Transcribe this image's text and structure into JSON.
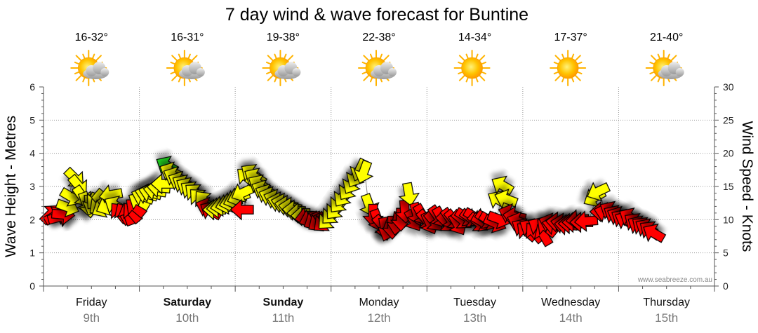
{
  "chart_data": {
    "type": "line",
    "title": "7 day wind & wave forecast for Buntine",
    "ylabel_left": "Wave Height - Metres",
    "ylabel_right": "Wind Speed - Knots",
    "ylim_left": [
      0,
      6
    ],
    "ylim_right": [
      0,
      30
    ],
    "yticks_left": [
      "0",
      "1",
      "2",
      "3",
      "4",
      "5",
      "6"
    ],
    "yticks_right": [
      "0",
      "5",
      "10",
      "15",
      "20",
      "25",
      "30"
    ],
    "credit": "www.seabreeze.com.au",
    "grid": true,
    "days": [
      {
        "name": "Friday",
        "date": "9th",
        "temp": "16-32°",
        "icon": "sun-cloud-icon",
        "bold": false
      },
      {
        "name": "Saturday",
        "date": "10th",
        "temp": "16-31°",
        "icon": "sun-cloud-icon",
        "bold": true
      },
      {
        "name": "Sunday",
        "date": "11th",
        "temp": "19-38°",
        "icon": "sun-cloud-icon",
        "bold": true
      },
      {
        "name": "Monday",
        "date": "12th",
        "temp": "22-38°",
        "icon": "sun-cloud-icon",
        "bold": false
      },
      {
        "name": "Tuesday",
        "date": "13th",
        "temp": "14-34°",
        "icon": "sun-icon",
        "bold": false
      },
      {
        "name": "Wednesday",
        "date": "14th",
        "temp": "17-37°",
        "icon": "sun-icon",
        "bold": false
      },
      {
        "name": "Thursday",
        "date": "15th",
        "temp": "21-40°",
        "icon": "sun-cloud-icon",
        "bold": false
      }
    ],
    "wind_colors": {
      "red": "#ff0000",
      "yellow": "#ffff00",
      "green": "#22dd22"
    },
    "wind_series": [
      {
        "day": 0.0,
        "knots": 10.6,
        "dir": 45,
        "color": "red"
      },
      {
        "day": 0.04,
        "knots": 10.4,
        "dir": 60,
        "color": "red"
      },
      {
        "day": 0.08,
        "knots": 10.3,
        "dir": 75,
        "color": "red"
      },
      {
        "day": 0.12,
        "knots": 10.8,
        "dir": 95,
        "color": "red"
      },
      {
        "day": 0.17,
        "knots": 12.0,
        "dir": 110,
        "color": "yellow"
      },
      {
        "day": 0.21,
        "knots": 13.6,
        "dir": 120,
        "color": "yellow"
      },
      {
        "day": 0.25,
        "knots": 16.5,
        "dir": 135,
        "color": "yellow"
      },
      {
        "day": 0.29,
        "knots": 15.4,
        "dir": 140,
        "color": "yellow"
      },
      {
        "day": 0.33,
        "knots": 13.8,
        "dir": 145,
        "color": "yellow"
      },
      {
        "day": 0.38,
        "knots": 12.8,
        "dir": 160,
        "color": "yellow"
      },
      {
        "day": 0.42,
        "knots": 12.4,
        "dir": 175,
        "color": "yellow"
      },
      {
        "day": 0.46,
        "knots": 12.7,
        "dir": 200,
        "color": "yellow"
      },
      {
        "day": 0.5,
        "knots": 13.3,
        "dir": 220,
        "color": "yellow"
      },
      {
        "day": 0.54,
        "knots": 12.4,
        "dir": 230,
        "color": "yellow"
      },
      {
        "day": 0.58,
        "knots": 11.9,
        "dir": 240,
        "color": "yellow"
      },
      {
        "day": 0.63,
        "knots": 12.2,
        "dir": 245,
        "color": "yellow"
      },
      {
        "day": 0.67,
        "knots": 13.8,
        "dir": 260,
        "color": "yellow"
      },
      {
        "day": 0.71,
        "knots": 12.0,
        "dir": 300,
        "color": "yellow"
      },
      {
        "day": 0.75,
        "knots": 10.8,
        "dir": 320,
        "color": "red"
      },
      {
        "day": 0.79,
        "knots": 10.6,
        "dir": 330,
        "color": "red"
      },
      {
        "day": 0.83,
        "knots": 10.5,
        "dir": 340,
        "color": "red"
      },
      {
        "day": 0.88,
        "knots": 10.8,
        "dir": 320,
        "color": "red"
      },
      {
        "day": 0.92,
        "knots": 11.6,
        "dir": 310,
        "color": "red"
      },
      {
        "day": 0.96,
        "knots": 12.6,
        "dir": 300,
        "color": "yellow"
      },
      {
        "day": 1.0,
        "knots": 13.4,
        "dir": 290,
        "color": "yellow"
      },
      {
        "day": 1.04,
        "knots": 13.8,
        "dir": 285,
        "color": "yellow"
      },
      {
        "day": 1.08,
        "knots": 14.0,
        "dir": 285,
        "color": "yellow"
      },
      {
        "day": 1.13,
        "knots": 14.3,
        "dir": 280,
        "color": "yellow"
      },
      {
        "day": 1.17,
        "knots": 14.8,
        "dir": 275,
        "color": "yellow"
      },
      {
        "day": 1.21,
        "knots": 15.4,
        "dir": 270,
        "color": "yellow"
      },
      {
        "day": 1.25,
        "knots": 18.0,
        "dir": 300,
        "color": "green"
      },
      {
        "day": 1.29,
        "knots": 17.1,
        "dir": 295,
        "color": "yellow"
      },
      {
        "day": 1.33,
        "knots": 16.4,
        "dir": 295,
        "color": "yellow"
      },
      {
        "day": 1.38,
        "knots": 15.7,
        "dir": 295,
        "color": "yellow"
      },
      {
        "day": 1.42,
        "knots": 15.2,
        "dir": 300,
        "color": "yellow"
      },
      {
        "day": 1.46,
        "knots": 14.8,
        "dir": 300,
        "color": "yellow"
      },
      {
        "day": 1.5,
        "knots": 14.2,
        "dir": 305,
        "color": "yellow"
      },
      {
        "day": 1.54,
        "knots": 13.8,
        "dir": 310,
        "color": "yellow"
      },
      {
        "day": 1.58,
        "knots": 13.0,
        "dir": 315,
        "color": "yellow"
      },
      {
        "day": 1.63,
        "knots": 12.6,
        "dir": 320,
        "color": "yellow"
      },
      {
        "day": 1.67,
        "knots": 11.8,
        "dir": 290,
        "color": "red"
      },
      {
        "day": 1.71,
        "knots": 11.2,
        "dir": 300,
        "color": "red"
      },
      {
        "day": 1.75,
        "knots": 11.5,
        "dir": 270,
        "color": "yellow"
      },
      {
        "day": 1.79,
        "knots": 11.8,
        "dir": 265,
        "color": "yellow"
      },
      {
        "day": 1.83,
        "knots": 12.1,
        "dir": 260,
        "color": "yellow"
      },
      {
        "day": 1.88,
        "knots": 12.4,
        "dir": 255,
        "color": "yellow"
      },
      {
        "day": 1.92,
        "knots": 12.7,
        "dir": 255,
        "color": "yellow"
      },
      {
        "day": 1.96,
        "knots": 13.1,
        "dir": 250,
        "color": "yellow"
      },
      {
        "day": 2.0,
        "knots": 13.5,
        "dir": 250,
        "color": "yellow"
      },
      {
        "day": 2.04,
        "knots": 14.2,
        "dir": 245,
        "color": "yellow"
      },
      {
        "day": 2.08,
        "knots": 16.2,
        "dir": 310,
        "color": "yellow"
      },
      {
        "day": 2.13,
        "knots": 16.8,
        "dir": 305,
        "color": "yellow"
      },
      {
        "day": 2.17,
        "knots": 16.2,
        "dir": 300,
        "color": "yellow"
      },
      {
        "day": 2.21,
        "knots": 15.2,
        "dir": 300,
        "color": "yellow"
      },
      {
        "day": 2.25,
        "knots": 14.4,
        "dir": 295,
        "color": "yellow"
      },
      {
        "day": 2.29,
        "knots": 13.8,
        "dir": 295,
        "color": "yellow"
      },
      {
        "day": 2.33,
        "knots": 13.4,
        "dir": 290,
        "color": "yellow"
      },
      {
        "day": 2.38,
        "knots": 13.0,
        "dir": 290,
        "color": "yellow"
      },
      {
        "day": 2.42,
        "knots": 12.6,
        "dir": 285,
        "color": "yellow"
      },
      {
        "day": 2.46,
        "knots": 12.4,
        "dir": 285,
        "color": "yellow"
      },
      {
        "day": 2.5,
        "knots": 12.1,
        "dir": 280,
        "color": "yellow"
      },
      {
        "day": 2.54,
        "knots": 11.8,
        "dir": 280,
        "color": "yellow"
      },
      {
        "day": 2.58,
        "knots": 11.4,
        "dir": 275,
        "color": "yellow"
      },
      {
        "day": 2.63,
        "knots": 11.0,
        "dir": 270,
        "color": "yellow"
      },
      {
        "day": 2.67,
        "knots": 10.6,
        "dir": 270,
        "color": "yellow"
      },
      {
        "day": 2.04,
        "knots": 11.5,
        "dir": 270,
        "color": "red"
      },
      {
        "day": 2.71,
        "knots": 10.4,
        "dir": 260,
        "color": "red"
      },
      {
        "day": 2.75,
        "knots": 10.2,
        "dir": 250,
        "color": "red"
      },
      {
        "day": 2.79,
        "knots": 10.0,
        "dir": 240,
        "color": "red"
      },
      {
        "day": 2.83,
        "knots": 9.8,
        "dir": 235,
        "color": "red"
      },
      {
        "day": 2.88,
        "knots": 9.8,
        "dir": 230,
        "color": "red"
      },
      {
        "day": 2.92,
        "knots": 10.2,
        "dir": 225,
        "color": "yellow"
      },
      {
        "day": 2.96,
        "knots": 11.0,
        "dir": 225,
        "color": "yellow"
      },
      {
        "day": 3.0,
        "knots": 11.8,
        "dir": 220,
        "color": "yellow"
      },
      {
        "day": 3.04,
        "knots": 12.8,
        "dir": 220,
        "color": "yellow"
      },
      {
        "day": 3.08,
        "knots": 13.8,
        "dir": 215,
        "color": "yellow"
      },
      {
        "day": 3.13,
        "knots": 14.8,
        "dir": 215,
        "color": "yellow"
      },
      {
        "day": 3.17,
        "knots": 15.8,
        "dir": 210,
        "color": "yellow"
      },
      {
        "day": 3.21,
        "knots": 16.8,
        "dir": 210,
        "color": "yellow"
      },
      {
        "day": 3.25,
        "knots": 17.8,
        "dir": 205,
        "color": "yellow"
      },
      {
        "day": 3.29,
        "knots": 17.5,
        "dir": 200,
        "color": "yellow"
      },
      {
        "day": 3.33,
        "knots": 12.5,
        "dir": 160,
        "color": "yellow"
      },
      {
        "day": 3.38,
        "knots": 11.0,
        "dir": 180,
        "color": "red"
      },
      {
        "day": 3.42,
        "knots": 10.2,
        "dir": 160,
        "color": "red"
      },
      {
        "day": 3.46,
        "knots": 9.4,
        "dir": 140,
        "color": "red"
      },
      {
        "day": 3.5,
        "knots": 9.0,
        "dir": 170,
        "color": "red"
      },
      {
        "day": 3.54,
        "knots": 8.8,
        "dir": 200,
        "color": "red"
      },
      {
        "day": 3.58,
        "knots": 9.2,
        "dir": 180,
        "color": "red"
      },
      {
        "day": 3.63,
        "knots": 9.8,
        "dir": 190,
        "color": "red"
      },
      {
        "day": 3.67,
        "knots": 10.4,
        "dir": 180,
        "color": "red"
      },
      {
        "day": 3.71,
        "knots": 11.6,
        "dir": 175,
        "color": "red"
      },
      {
        "day": 3.75,
        "knots": 14.2,
        "dir": 170,
        "color": "yellow"
      },
      {
        "day": 3.79,
        "knots": 10.2,
        "dir": 150,
        "color": "red"
      },
      {
        "day": 3.83,
        "knots": 11.2,
        "dir": 165,
        "color": "red"
      },
      {
        "day": 3.88,
        "knots": 11.0,
        "dir": 150,
        "color": "red"
      },
      {
        "day": 3.92,
        "knots": 10.2,
        "dir": 140,
        "color": "red"
      },
      {
        "day": 3.96,
        "knots": 9.8,
        "dir": 155,
        "color": "red"
      },
      {
        "day": 4.0,
        "knots": 10.0,
        "dir": 140,
        "color": "red"
      },
      {
        "day": 4.04,
        "knots": 10.8,
        "dir": 145,
        "color": "red"
      },
      {
        "day": 4.08,
        "knots": 10.6,
        "dir": 150,
        "color": "red"
      },
      {
        "day": 4.13,
        "knots": 9.8,
        "dir": 135,
        "color": "red"
      },
      {
        "day": 4.17,
        "knots": 10.4,
        "dir": 145,
        "color": "red"
      },
      {
        "day": 4.21,
        "knots": 10.2,
        "dir": 140,
        "color": "red"
      },
      {
        "day": 4.25,
        "knots": 9.6,
        "dir": 150,
        "color": "red"
      },
      {
        "day": 4.29,
        "knots": 10.2,
        "dir": 130,
        "color": "red"
      },
      {
        "day": 4.33,
        "knots": 10.6,
        "dir": 120,
        "color": "red"
      },
      {
        "day": 4.38,
        "knots": 10.4,
        "dir": 125,
        "color": "red"
      },
      {
        "day": 4.42,
        "knots": 10.6,
        "dir": 120,
        "color": "red"
      },
      {
        "day": 4.46,
        "knots": 9.8,
        "dir": 130,
        "color": "red"
      },
      {
        "day": 4.5,
        "knots": 9.8,
        "dir": 120,
        "color": "red"
      },
      {
        "day": 4.54,
        "knots": 10.2,
        "dir": 125,
        "color": "red"
      },
      {
        "day": 4.58,
        "knots": 10.0,
        "dir": 120,
        "color": "red"
      },
      {
        "day": 4.63,
        "knots": 9.6,
        "dir": 115,
        "color": "red"
      },
      {
        "day": 4.67,
        "knots": 10.2,
        "dir": 110,
        "color": "red"
      },
      {
        "day": 4.71,
        "knots": 12.8,
        "dir": 300,
        "color": "yellow"
      },
      {
        "day": 4.75,
        "knots": 15.0,
        "dir": 300,
        "color": "yellow"
      },
      {
        "day": 4.79,
        "knots": 13.0,
        "dir": 290,
        "color": "yellow"
      },
      {
        "day": 4.83,
        "knots": 10.8,
        "dir": 290,
        "color": "red"
      },
      {
        "day": 4.88,
        "knots": 10.4,
        "dir": 280,
        "color": "red"
      },
      {
        "day": 4.92,
        "knots": 9.6,
        "dir": 290,
        "color": "red"
      },
      {
        "day": 4.96,
        "knots": 8.6,
        "dir": 300,
        "color": "red"
      },
      {
        "day": 5.0,
        "knots": 8.0,
        "dir": 310,
        "color": "red"
      },
      {
        "day": 5.04,
        "knots": 8.6,
        "dir": 300,
        "color": "red"
      },
      {
        "day": 5.08,
        "knots": 7.8,
        "dir": 320,
        "color": "red"
      },
      {
        "day": 5.13,
        "knots": 8.8,
        "dir": 300,
        "color": "red"
      },
      {
        "day": 5.17,
        "knots": 7.4,
        "dir": 330,
        "color": "red"
      },
      {
        "day": 5.21,
        "knots": 8.6,
        "dir": 310,
        "color": "red"
      },
      {
        "day": 5.25,
        "knots": 9.4,
        "dir": 290,
        "color": "red"
      },
      {
        "day": 5.29,
        "knots": 9.2,
        "dir": 280,
        "color": "red"
      },
      {
        "day": 5.33,
        "knots": 9.6,
        "dir": 275,
        "color": "red"
      },
      {
        "day": 5.38,
        "knots": 9.4,
        "dir": 280,
        "color": "red"
      },
      {
        "day": 5.42,
        "knots": 9.2,
        "dir": 275,
        "color": "red"
      },
      {
        "day": 5.46,
        "knots": 9.4,
        "dir": 270,
        "color": "red"
      },
      {
        "day": 5.5,
        "knots": 9.6,
        "dir": 270,
        "color": "red"
      },
      {
        "day": 5.54,
        "knots": 10.0,
        "dir": 265,
        "color": "red"
      },
      {
        "day": 5.58,
        "knots": 9.6,
        "dir": 270,
        "color": "red"
      },
      {
        "day": 5.63,
        "knots": 9.8,
        "dir": 265,
        "color": "red"
      },
      {
        "day": 5.71,
        "knots": 13.5,
        "dir": 240,
        "color": "yellow"
      },
      {
        "day": 5.75,
        "knots": 14.4,
        "dir": 245,
        "color": "yellow"
      },
      {
        "day": 5.79,
        "knots": 11.2,
        "dir": 270,
        "color": "red"
      },
      {
        "day": 5.83,
        "knots": 11.0,
        "dir": 285,
        "color": "red"
      },
      {
        "day": 5.88,
        "knots": 11.2,
        "dir": 300,
        "color": "red"
      },
      {
        "day": 5.92,
        "knots": 10.6,
        "dir": 300,
        "color": "red"
      },
      {
        "day": 5.96,
        "knots": 10.4,
        "dir": 295,
        "color": "red"
      },
      {
        "day": 6.0,
        "knots": 10.0,
        "dir": 300,
        "color": "red"
      },
      {
        "day": 6.04,
        "knots": 9.8,
        "dir": 295,
        "color": "red"
      },
      {
        "day": 6.08,
        "knots": 10.2,
        "dir": 300,
        "color": "red"
      },
      {
        "day": 6.13,
        "knots": 9.4,
        "dir": 305,
        "color": "red"
      },
      {
        "day": 6.17,
        "knots": 9.0,
        "dir": 300,
        "color": "red"
      },
      {
        "day": 6.21,
        "knots": 8.8,
        "dir": 305,
        "color": "red"
      },
      {
        "day": 6.25,
        "knots": 8.6,
        "dir": 300,
        "color": "red"
      },
      {
        "day": 6.29,
        "knots": 8.2,
        "dir": 305,
        "color": "red"
      },
      {
        "day": 6.33,
        "knots": 7.8,
        "dir": 300,
        "color": "red"
      }
    ]
  }
}
